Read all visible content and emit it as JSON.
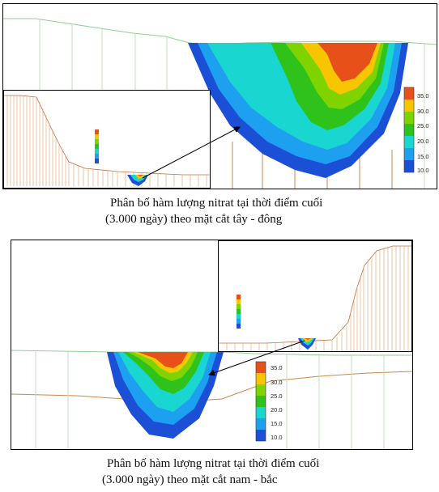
{
  "figure1": {
    "caption_line1": "Phân bố hàm lượng nitrat tại thời điểm cuối",
    "caption_line2": "(3.000 ngày) theo mặt cắt tây - đông"
  },
  "figure2": {
    "caption_line1": "Phân bố hàm lượng nitrat tại thời điểm cuối",
    "caption_line2": "(3.000 ngày) theo mặt cắt nam - bắc"
  },
  "legend": {
    "labels": [
      "35.0",
      "30.0",
      "25.0",
      "20.0",
      "15.0",
      "10.0"
    ],
    "colors": [
      "#e8501a",
      "#f7c600",
      "#7fd400",
      "#2fc21a",
      "#19d7d0",
      "#1ea0f0",
      "#1a4fd6"
    ]
  }
}
